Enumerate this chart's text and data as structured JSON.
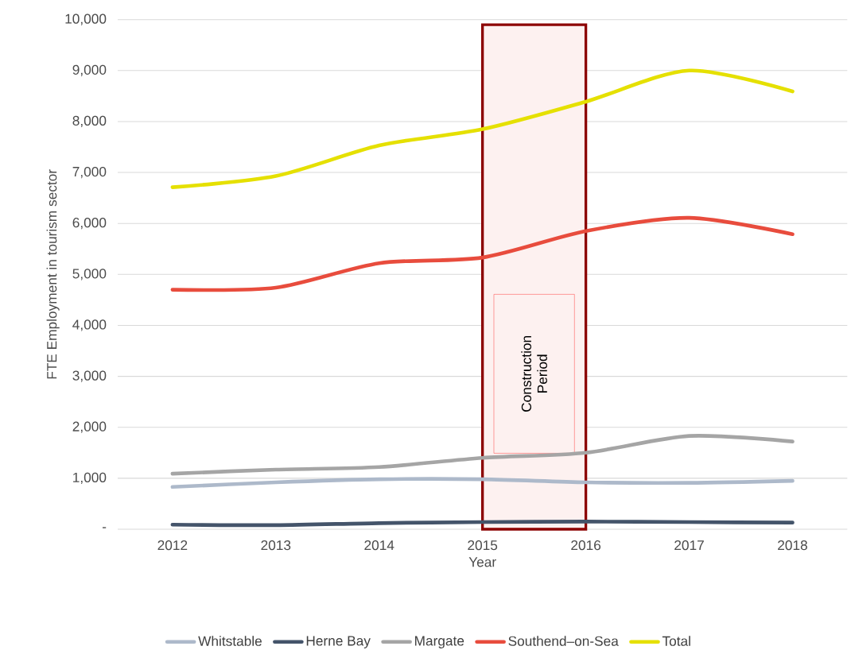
{
  "chart_data": {
    "type": "line",
    "xlabel": "Year",
    "ylabel": "FTE Employment in tourism sector",
    "x": [
      2012,
      2013,
      2014,
      2015,
      2016,
      2017,
      2018
    ],
    "xlim": [
      2011.47,
      2018.53
    ],
    "xticks": [
      2012,
      2013,
      2014,
      2015,
      2016,
      2017,
      2018
    ],
    "ylim": [
      0,
      10000
    ],
    "yticks": [
      {
        "value": 0,
        "label": "-"
      },
      {
        "value": 1000,
        "label": "1,000"
      },
      {
        "value": 2000,
        "label": "2,000"
      },
      {
        "value": 3000,
        "label": "3,000"
      },
      {
        "value": 4000,
        "label": "4,000"
      },
      {
        "value": 5000,
        "label": "5,000"
      },
      {
        "value": 6000,
        "label": "6,000"
      },
      {
        "value": 7000,
        "label": "7,000"
      },
      {
        "value": 8000,
        "label": "8,000"
      },
      {
        "value": 9000,
        "label": "9,000"
      },
      {
        "value": 10000,
        "label": "10,000"
      }
    ],
    "grid": "y",
    "legend": "bottom",
    "bands": [
      {
        "axis": "x",
        "from": 2015,
        "to": 2016,
        "label": "Construction Period",
        "color": "#fdf1f0"
      }
    ],
    "series": [
      {
        "name": "Whitstable",
        "color": "#adb9ca",
        "values": [
          830,
          920,
          980,
          980,
          920,
          910,
          950
        ]
      },
      {
        "name": "Herne Bay",
        "color": "#44546a",
        "values": [
          90,
          80,
          120,
          140,
          150,
          140,
          130
        ]
      },
      {
        "name": "Margate",
        "color": "#a5a5a5",
        "values": [
          1090,
          1170,
          1220,
          1400,
          1500,
          1830,
          1720
        ]
      },
      {
        "name": "Southend–on-Sea",
        "color": "#e84c3d",
        "values": [
          4700,
          4740,
          5220,
          5330,
          5850,
          6110,
          5790
        ]
      },
      {
        "name": "Total",
        "color": "#e5e000",
        "values": [
          6710,
          6930,
          7530,
          7850,
          8390,
          9000,
          8590
        ]
      }
    ]
  }
}
